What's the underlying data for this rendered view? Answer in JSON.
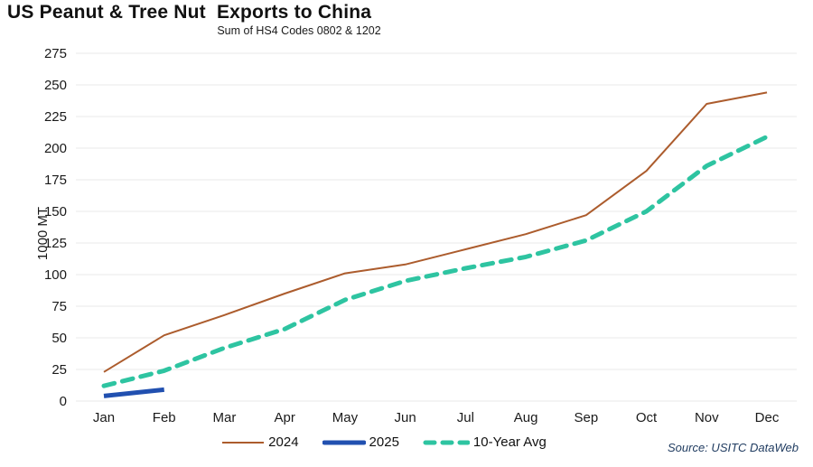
{
  "header": {
    "title": "US Peanut & Tree Nut  Exports to China",
    "subtitle": "Sum of HS4 Codes 0802 & 1202"
  },
  "chart_data": {
    "type": "line",
    "title": "US Peanut & Tree Nut  Exports to China",
    "subtitle": "Sum of HS4 Codes 0802 & 1202",
    "ylabel": "1000 MT",
    "xlabel": "",
    "categories": [
      "Jan",
      "Feb",
      "Mar",
      "Apr",
      "May",
      "Jun",
      "Jul",
      "Aug",
      "Sep",
      "Oct",
      "Nov",
      "Dec"
    ],
    "y_ticks": [
      0,
      25,
      50,
      75,
      100,
      125,
      150,
      175,
      200,
      225,
      250,
      275
    ],
    "ylim": [
      0,
      275
    ],
    "grid": true,
    "legend_position": "bottom",
    "series": [
      {
        "name": "2024",
        "color": "#ac5c2d",
        "style": "solid",
        "stroke_width": 2,
        "values": [
          23,
          52,
          68,
          85,
          101,
          108,
          120,
          132,
          147,
          182,
          235,
          244
        ]
      },
      {
        "name": "2025",
        "color": "#2150b0",
        "style": "solid",
        "stroke_width": 5,
        "values": [
          4,
          9
        ]
      },
      {
        "name": "10-Year Avg",
        "color": "#2ec4a1",
        "style": "dashed",
        "stroke_width": 5,
        "values": [
          12,
          24,
          42,
          57,
          80,
          95,
          105,
          114,
          127,
          150,
          186,
          209
        ]
      }
    ]
  },
  "legend": {
    "items": [
      {
        "label": "2024"
      },
      {
        "label": "2025"
      },
      {
        "label": "10-Year Avg"
      }
    ]
  },
  "source": "Source: USITC DataWeb"
}
